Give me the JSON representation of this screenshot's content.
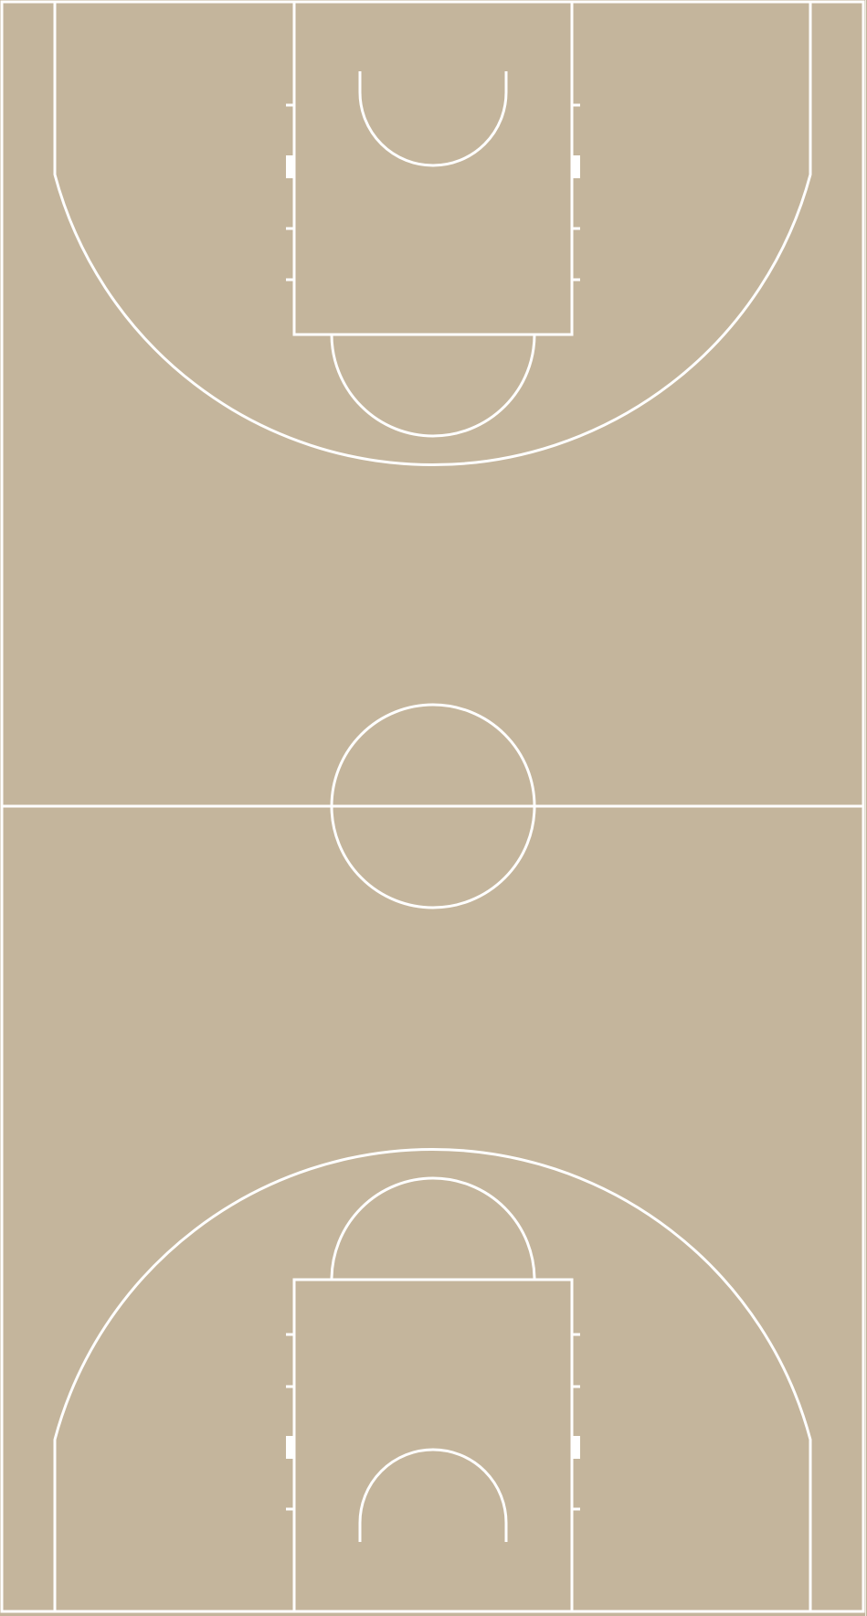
{
  "court": {
    "floor_color": "#c4b59c",
    "line_color": "#ffffff",
    "side_strip_color": "#ffffff"
  }
}
